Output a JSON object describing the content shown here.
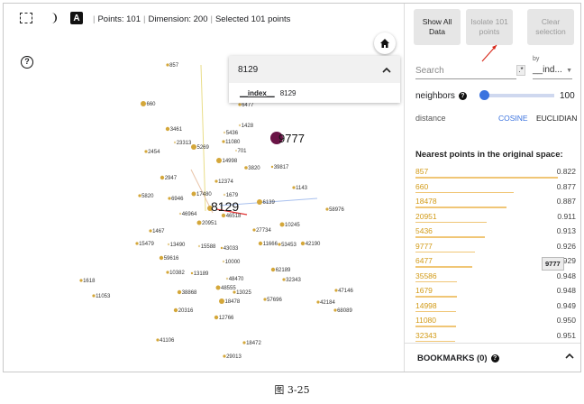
{
  "toolbar": {
    "points_text": "Points: 101",
    "dimension_text": "Dimension: 200",
    "selected_text": "Selected 101 points",
    "label_icon_glyph": "A"
  },
  "colors": {
    "point": "#d4a73a",
    "point_highlight": "#6a1446",
    "accent": "#3b73df",
    "neighbor_id": "#d29a16"
  },
  "icons": {
    "selection": "dashed-rectangle-selection-icon",
    "night_mode": "half-moon-icon",
    "labels": "label-a-icon",
    "home": "home-icon",
    "help": "help-circle-icon"
  },
  "search_popup": {
    "title": "8129",
    "row_key": "__index__",
    "row_value": "8129"
  },
  "scatter": {
    "selected_label": "8129",
    "highlight_label": "9777",
    "points": [
      {
        "id": "857",
        "label": "857"
      },
      {
        "id": "660",
        "label": "660"
      },
      {
        "id": "6477",
        "label": "6477"
      },
      {
        "id": "1428",
        "label": "1428"
      },
      {
        "id": "3461",
        "label": "3461"
      },
      {
        "id": "5436",
        "label": "5436"
      },
      {
        "id": "11080",
        "label": "11080"
      },
      {
        "id": "23313",
        "label": "23313"
      },
      {
        "id": "5269",
        "label": "5269"
      },
      {
        "id": "701",
        "label": "701"
      },
      {
        "id": "2454",
        "label": "2454"
      },
      {
        "id": "14998",
        "label": "14998"
      },
      {
        "id": "3820",
        "label": "3820"
      },
      {
        "id": "39817",
        "label": "39817"
      },
      {
        "id": "2947",
        "label": "2947"
      },
      {
        "id": "12374",
        "label": "12374"
      },
      {
        "id": "1143",
        "label": "1143"
      },
      {
        "id": "5820",
        "label": "5820"
      },
      {
        "id": "6946",
        "label": "6946"
      },
      {
        "id": "17480",
        "label": "17480"
      },
      {
        "id": "1679",
        "label": "1679"
      },
      {
        "id": "6139",
        "label": "6139"
      },
      {
        "id": "58976",
        "label": "58976"
      },
      {
        "id": "46964",
        "label": "46964"
      },
      {
        "id": "46518",
        "label": "46518"
      },
      {
        "id": "20951",
        "label": "20951"
      },
      {
        "id": "10245",
        "label": "10245"
      },
      {
        "id": "1467",
        "label": "1467"
      },
      {
        "id": "27734",
        "label": "27734"
      },
      {
        "id": "15479",
        "label": "15479"
      },
      {
        "id": "13490",
        "label": "13490"
      },
      {
        "id": "15588",
        "label": "15588"
      },
      {
        "id": "43033",
        "label": "43033"
      },
      {
        "id": "11666",
        "label": "11666"
      },
      {
        "id": "53453",
        "label": "53453"
      },
      {
        "id": "42190",
        "label": "42190"
      },
      {
        "id": "59616",
        "label": "59616"
      },
      {
        "id": "10000",
        "label": "10000"
      },
      {
        "id": "10382",
        "label": "10382"
      },
      {
        "id": "13189",
        "label": "13189"
      },
      {
        "id": "62189",
        "label": "62189"
      },
      {
        "id": "48470",
        "label": "48470"
      },
      {
        "id": "32343",
        "label": "32343"
      },
      {
        "id": "1618",
        "label": "1618"
      },
      {
        "id": "38868",
        "label": "38868"
      },
      {
        "id": "48555",
        "label": "48555"
      },
      {
        "id": "13025",
        "label": "13025"
      },
      {
        "id": "47146",
        "label": "47146"
      },
      {
        "id": "11053",
        "label": "11053"
      },
      {
        "id": "18478",
        "label": "18478"
      },
      {
        "id": "57696",
        "label": "57696"
      },
      {
        "id": "42184",
        "label": "42184"
      },
      {
        "id": "20316",
        "label": "20316"
      },
      {
        "id": "68089",
        "label": "68089"
      },
      {
        "id": "12766",
        "label": "12766"
      },
      {
        "id": "41106",
        "label": "41106"
      },
      {
        "id": "18472",
        "label": "18472"
      },
      {
        "id": "29013",
        "label": "29013"
      }
    ]
  },
  "panel": {
    "show_all_label": "Show All Data",
    "isolate_label": "Isolate 101 points",
    "clear_label": "Clear selection",
    "search_placeholder": "Search",
    "regex_label": ".*",
    "by_label": "by",
    "by_value": "__ind...",
    "neighbors_label": "neighbors",
    "neighbors_value": "100",
    "neighbors_fraction": 0.02,
    "distance_label": "distance",
    "cosine_label": "COSINE",
    "euclidian_label": "EUCLIDIAN",
    "nn_title": "Nearest points in the original space:",
    "neighbors": [
      {
        "id": "857",
        "value": "0.822",
        "score": 0.822
      },
      {
        "id": "660",
        "value": "0.877",
        "score": 0.877
      },
      {
        "id": "18478",
        "value": "0.887",
        "score": 0.887
      },
      {
        "id": "20951",
        "value": "0.911",
        "score": 0.911
      },
      {
        "id": "5436",
        "value": "0.913",
        "score": 0.913
      },
      {
        "id": "9777",
        "value": "0.926",
        "score": 0.926
      },
      {
        "id": "6477",
        "value": "0.929",
        "score": 0.929
      },
      {
        "id": "35586",
        "value": "0.948",
        "score": 0.948
      },
      {
        "id": "1679",
        "value": "0.948",
        "score": 0.948
      },
      {
        "id": "14998",
        "value": "0.949",
        "score": 0.949
      },
      {
        "id": "11080",
        "value": "0.950",
        "score": 0.95
      },
      {
        "id": "32343",
        "value": "0.951",
        "score": 0.951
      }
    ],
    "tooltip_text": "9777",
    "bookmarks_label": "BOOKMARKS (0)"
  },
  "caption": "图 3-25"
}
